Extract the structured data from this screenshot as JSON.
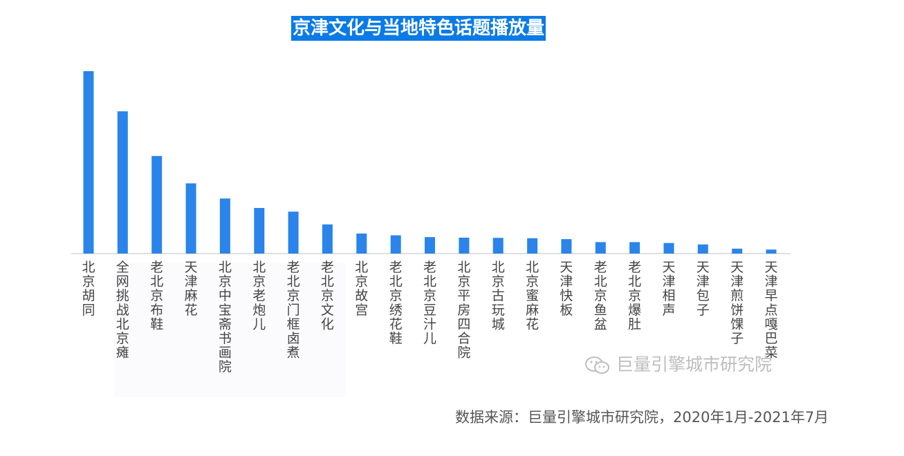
{
  "title": "京津文化与当地特色话题播放量",
  "watermark": "巨量引擎城市研究院",
  "source": "数据来源：巨量引擎城市研究院，2020年1月-2021年7月",
  "colors": {
    "bar": "#2a84ea",
    "title_bg": "#0a7be6"
  },
  "chart_data": {
    "type": "bar",
    "title": "京津文化与当地特色话题播放量",
    "xlabel": "",
    "ylabel": "",
    "ylim": [
      0,
      100
    ],
    "grid": false,
    "categories": [
      "北京胡同",
      "全网挑战北京瘫",
      "老北京布鞋",
      "天津麻花",
      "北京中宝斋书画院",
      "北京老炮儿",
      "老北京门框卤煮",
      "老北京文化",
      "北京故宫",
      "老北京绣花鞋",
      "老北京豆汁儿",
      "北京平房四合院",
      "北京古玩城",
      "北京蜜麻花",
      "天津快板",
      "老北京鱼盆",
      "老北京爆肚",
      "天津相声",
      "天津包子",
      "天津煎饼馃子",
      "天津早点嘎巴菜"
    ],
    "values": [
      100,
      78,
      53.5,
      38.5,
      30.2,
      25,
      23,
      16,
      11,
      10,
      9,
      8.7,
      8.6,
      8.4,
      7.9,
      6.3,
      6.3,
      5.8,
      5,
      2.7,
      2.2
    ]
  }
}
